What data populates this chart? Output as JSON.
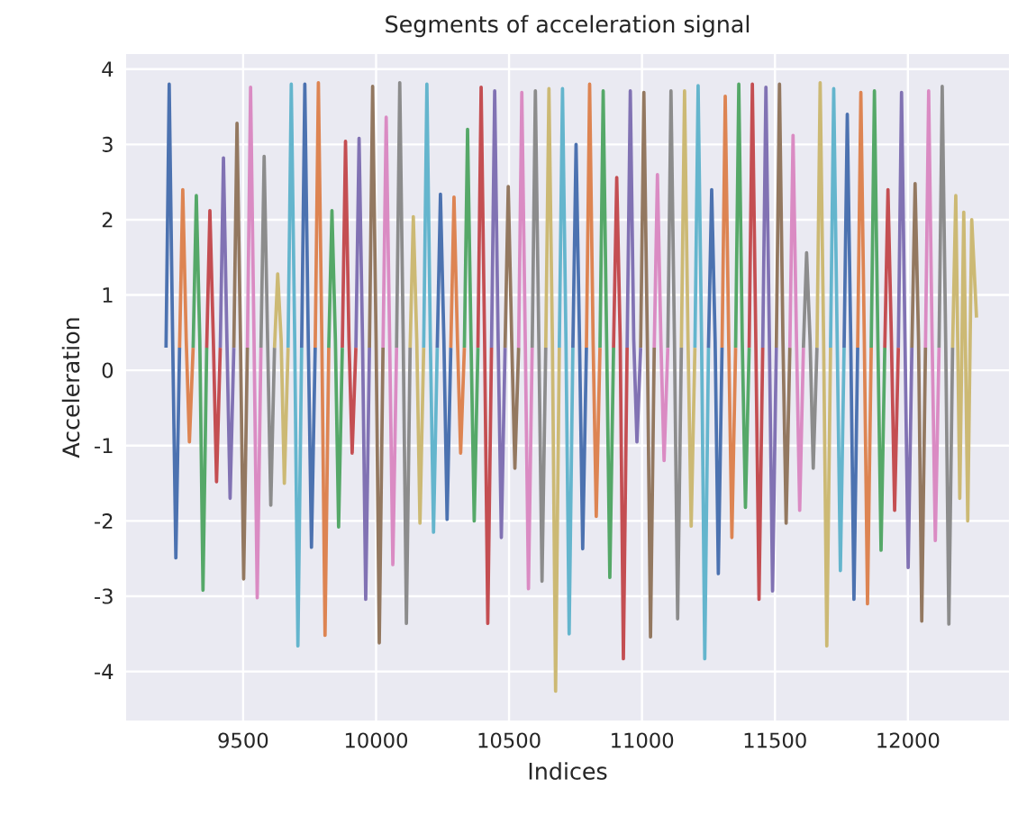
{
  "chart_data": {
    "type": "line",
    "title": "Segments of acceleration signal",
    "xlabel": "Indices",
    "ylabel": "Acceleration",
    "xlim": [
      9060,
      12380
    ],
    "ylim": [
      -4.65,
      4.2
    ],
    "xticks": [
      9500,
      10000,
      10500,
      11000,
      11500,
      12000
    ],
    "yticks": [
      -4,
      -3,
      -2,
      -1,
      0,
      1,
      2,
      3,
      4
    ],
    "grid": true,
    "marker": "none",
    "line_style": "solid",
    "series": [
      {
        "color": "#4c72b0",
        "x": [
          9210,
          9222,
          9235,
          9247,
          9261
        ],
        "values": [
          0.3,
          3.8,
          0.4,
          -2.49,
          0.3
        ]
      },
      {
        "color": "#dd8452",
        "x": [
          9261,
          9273,
          9286,
          9298,
          9312
        ],
        "values": [
          0.3,
          2.4,
          0.4,
          -0.95,
          0.3
        ]
      },
      {
        "color": "#55a868",
        "x": [
          9312,
          9324,
          9337,
          9349,
          9363
        ],
        "values": [
          0.3,
          2.32,
          0.4,
          -2.92,
          0.3
        ]
      },
      {
        "color": "#c44e52",
        "x": [
          9363,
          9375,
          9388,
          9400,
          9414
        ],
        "values": [
          0.3,
          2.12,
          0.4,
          -1.48,
          0.3
        ]
      },
      {
        "color": "#8172b3",
        "x": [
          9414,
          9426,
          9439,
          9451,
          9465
        ],
        "values": [
          0.3,
          2.82,
          0.4,
          -1.7,
          0.3
        ]
      },
      {
        "color": "#937860",
        "x": [
          9465,
          9477,
          9490,
          9502,
          9516
        ],
        "values": [
          0.3,
          3.28,
          0.4,
          -2.77,
          0.3
        ]
      },
      {
        "color": "#da8bc3",
        "x": [
          9516,
          9528,
          9541,
          9553,
          9567
        ],
        "values": [
          0.3,
          3.76,
          0.4,
          -3.02,
          0.3
        ]
      },
      {
        "color": "#8c8c8c",
        "x": [
          9567,
          9579,
          9592,
          9604,
          9618
        ],
        "values": [
          0.3,
          2.84,
          0.4,
          -1.79,
          0.3
        ]
      },
      {
        "color": "#ccb974",
        "x": [
          9618,
          9630,
          9643,
          9655,
          9669
        ],
        "values": [
          0.3,
          1.28,
          0.4,
          -1.5,
          0.3
        ]
      },
      {
        "color": "#64b5cd",
        "x": [
          9669,
          9681,
          9694,
          9706,
          9720
        ],
        "values": [
          0.3,
          3.8,
          0.4,
          -3.66,
          0.3
        ]
      },
      {
        "color": "#4c72b0",
        "x": [
          9720,
          9732,
          9745,
          9757,
          9771
        ],
        "values": [
          0.3,
          3.8,
          0.4,
          -2.35,
          0.3
        ]
      },
      {
        "color": "#dd8452",
        "x": [
          9771,
          9783,
          9796,
          9808,
          9822
        ],
        "values": [
          0.3,
          3.82,
          0.4,
          -3.52,
          0.3
        ]
      },
      {
        "color": "#55a868",
        "x": [
          9822,
          9834,
          9847,
          9859,
          9873
        ],
        "values": [
          0.3,
          2.12,
          0.4,
          -2.08,
          0.3
        ]
      },
      {
        "color": "#c44e52",
        "x": [
          9873,
          9885,
          9898,
          9910,
          9924
        ],
        "values": [
          0.3,
          3.04,
          0.4,
          -1.1,
          0.3
        ]
      },
      {
        "color": "#8172b3",
        "x": [
          9924,
          9936,
          9949,
          9961,
          9975
        ],
        "values": [
          0.3,
          3.08,
          0.4,
          -3.04,
          0.3
        ]
      },
      {
        "color": "#937860",
        "x": [
          9975,
          9987,
          10000,
          10012,
          10026
        ],
        "values": [
          0.3,
          3.77,
          0.4,
          -3.62,
          0.3
        ]
      },
      {
        "color": "#da8bc3",
        "x": [
          10026,
          10038,
          10051,
          10063,
          10077
        ],
        "values": [
          0.3,
          3.36,
          0.4,
          -2.58,
          0.3
        ]
      },
      {
        "color": "#8c8c8c",
        "x": [
          10077,
          10089,
          10102,
          10114,
          10128
        ],
        "values": [
          0.3,
          3.82,
          0.4,
          -3.36,
          0.3
        ]
      },
      {
        "color": "#ccb974",
        "x": [
          10128,
          10140,
          10153,
          10165,
          10179
        ],
        "values": [
          0.3,
          2.04,
          0.4,
          -2.03,
          0.3
        ]
      },
      {
        "color": "#64b5cd",
        "x": [
          10179,
          10191,
          10204,
          10216,
          10230
        ],
        "values": [
          0.3,
          3.8,
          0.4,
          -2.15,
          0.3
        ]
      },
      {
        "color": "#4c72b0",
        "x": [
          10230,
          10242,
          10255,
          10267,
          10281
        ],
        "values": [
          0.3,
          2.34,
          0.4,
          -1.98,
          0.3
        ]
      },
      {
        "color": "#dd8452",
        "x": [
          10281,
          10293,
          10306,
          10318,
          10332
        ],
        "values": [
          0.3,
          2.3,
          0.4,
          -1.1,
          0.3
        ]
      },
      {
        "color": "#55a868",
        "x": [
          10332,
          10344,
          10357,
          10369,
          10383
        ],
        "values": [
          0.3,
          3.2,
          0.4,
          -2.0,
          0.3
        ]
      },
      {
        "color": "#c44e52",
        "x": [
          10383,
          10395,
          10408,
          10420,
          10434
        ],
        "values": [
          0.3,
          3.76,
          0.4,
          -3.36,
          0.3
        ]
      },
      {
        "color": "#8172b3",
        "x": [
          10434,
          10446,
          10459,
          10471,
          10485
        ],
        "values": [
          0.3,
          3.71,
          0.4,
          -2.22,
          0.3
        ]
      },
      {
        "color": "#937860",
        "x": [
          10485,
          10497,
          10510,
          10522,
          10536
        ],
        "values": [
          0.3,
          2.44,
          0.4,
          -1.3,
          0.3
        ]
      },
      {
        "color": "#da8bc3",
        "x": [
          10536,
          10548,
          10561,
          10573,
          10587
        ],
        "values": [
          0.3,
          3.69,
          0.4,
          -2.9,
          0.3
        ]
      },
      {
        "color": "#8c8c8c",
        "x": [
          10587,
          10599,
          10612,
          10624,
          10638
        ],
        "values": [
          0.3,
          3.71,
          0.4,
          -2.8,
          0.3
        ]
      },
      {
        "color": "#ccb974",
        "x": [
          10638,
          10650,
          10663,
          10675,
          10689
        ],
        "values": [
          0.3,
          3.74,
          0.4,
          -4.26,
          0.3
        ]
      },
      {
        "color": "#64b5cd",
        "x": [
          10689,
          10701,
          10714,
          10726,
          10740
        ],
        "values": [
          0.3,
          3.74,
          0.4,
          -3.5,
          0.3
        ]
      },
      {
        "color": "#4c72b0",
        "x": [
          10740,
          10752,
          10765,
          10777,
          10791
        ],
        "values": [
          0.3,
          3.0,
          0.4,
          -2.37,
          0.3
        ]
      },
      {
        "color": "#dd8452",
        "x": [
          10791,
          10803,
          10816,
          10828,
          10842
        ],
        "values": [
          0.3,
          3.8,
          0.4,
          -1.94,
          0.3
        ]
      },
      {
        "color": "#55a868",
        "x": [
          10842,
          10854,
          10867,
          10879,
          10893
        ],
        "values": [
          0.3,
          3.71,
          0.4,
          -2.75,
          0.3
        ]
      },
      {
        "color": "#c44e52",
        "x": [
          10893,
          10905,
          10918,
          10930,
          10944
        ],
        "values": [
          0.3,
          2.56,
          0.4,
          -3.83,
          0.3
        ]
      },
      {
        "color": "#8172b3",
        "x": [
          10944,
          10956,
          10969,
          10981,
          10995
        ],
        "values": [
          0.3,
          3.71,
          0.4,
          -0.95,
          0.3
        ]
      },
      {
        "color": "#937860",
        "x": [
          10995,
          11007,
          11020,
          11032,
          11046
        ],
        "values": [
          0.3,
          3.69,
          0.4,
          -3.54,
          0.3
        ]
      },
      {
        "color": "#da8bc3",
        "x": [
          11046,
          11058,
          11071,
          11083,
          11097
        ],
        "values": [
          0.3,
          2.6,
          0.4,
          -1.2,
          0.3
        ]
      },
      {
        "color": "#8c8c8c",
        "x": [
          11097,
          11109,
          11122,
          11134,
          11148
        ],
        "values": [
          0.3,
          3.71,
          0.4,
          -3.3,
          0.3
        ]
      },
      {
        "color": "#ccb974",
        "x": [
          11148,
          11160,
          11173,
          11185,
          11199
        ],
        "values": [
          0.3,
          3.71,
          0.4,
          -2.07,
          0.3
        ]
      },
      {
        "color": "#64b5cd",
        "x": [
          11199,
          11211,
          11224,
          11236,
          11250
        ],
        "values": [
          0.3,
          3.78,
          0.4,
          -3.83,
          0.3
        ]
      },
      {
        "color": "#4c72b0",
        "x": [
          11250,
          11262,
          11275,
          11287,
          11301
        ],
        "values": [
          0.3,
          2.4,
          0.4,
          -2.7,
          0.3
        ]
      },
      {
        "color": "#dd8452",
        "x": [
          11301,
          11313,
          11326,
          11338,
          11352
        ],
        "values": [
          0.3,
          3.64,
          0.4,
          -2.22,
          0.3
        ]
      },
      {
        "color": "#55a868",
        "x": [
          11352,
          11364,
          11377,
          11389,
          11403
        ],
        "values": [
          0.3,
          3.8,
          0.4,
          -1.82,
          0.3
        ]
      },
      {
        "color": "#c44e52",
        "x": [
          11403,
          11415,
          11428,
          11440,
          11454
        ],
        "values": [
          0.3,
          3.8,
          0.4,
          -3.04,
          0.3
        ]
      },
      {
        "color": "#8172b3",
        "x": [
          11454,
          11466,
          11479,
          11491,
          11505
        ],
        "values": [
          0.3,
          3.76,
          0.4,
          -2.93,
          0.3
        ]
      },
      {
        "color": "#937860",
        "x": [
          11505,
          11517,
          11530,
          11542,
          11556
        ],
        "values": [
          0.3,
          3.8,
          0.4,
          -2.03,
          0.3
        ]
      },
      {
        "color": "#da8bc3",
        "x": [
          11556,
          11568,
          11581,
          11593,
          11607
        ],
        "values": [
          0.3,
          3.12,
          0.4,
          -1.86,
          0.3
        ]
      },
      {
        "color": "#8c8c8c",
        "x": [
          11607,
          11619,
          11632,
          11644,
          11658
        ],
        "values": [
          0.3,
          1.56,
          0.4,
          -1.3,
          0.3
        ]
      },
      {
        "color": "#ccb974",
        "x": [
          11658,
          11670,
          11683,
          11695,
          11709
        ],
        "values": [
          0.3,
          3.82,
          0.4,
          -3.66,
          0.3
        ]
      },
      {
        "color": "#64b5cd",
        "x": [
          11709,
          11721,
          11734,
          11746,
          11760
        ],
        "values": [
          0.3,
          3.74,
          0.4,
          -2.66,
          0.3
        ]
      },
      {
        "color": "#4c72b0",
        "x": [
          11760,
          11772,
          11785,
          11797,
          11811
        ],
        "values": [
          0.3,
          3.4,
          0.4,
          -3.04,
          0.3
        ]
      },
      {
        "color": "#dd8452",
        "x": [
          11811,
          11823,
          11836,
          11848,
          11862
        ],
        "values": [
          0.3,
          3.69,
          0.4,
          -3.1,
          0.3
        ]
      },
      {
        "color": "#55a868",
        "x": [
          11862,
          11874,
          11887,
          11899,
          11913
        ],
        "values": [
          0.3,
          3.71,
          0.4,
          -2.39,
          0.3
        ]
      },
      {
        "color": "#c44e52",
        "x": [
          11913,
          11925,
          11938,
          11950,
          11964
        ],
        "values": [
          0.3,
          2.4,
          0.4,
          -1.86,
          0.3
        ]
      },
      {
        "color": "#8172b3",
        "x": [
          11964,
          11976,
          11989,
          12001,
          12015
        ],
        "values": [
          0.3,
          3.69,
          0.4,
          -2.62,
          0.3
        ]
      },
      {
        "color": "#937860",
        "x": [
          12015,
          12027,
          12040,
          12052,
          12066
        ],
        "values": [
          0.3,
          2.48,
          0.4,
          -3.33,
          0.3
        ]
      },
      {
        "color": "#da8bc3",
        "x": [
          12066,
          12078,
          12091,
          12103,
          12117
        ],
        "values": [
          0.3,
          3.71,
          0.4,
          -2.26,
          0.3
        ]
      },
      {
        "color": "#8c8c8c",
        "x": [
          12117,
          12129,
          12142,
          12154,
          12168
        ],
        "values": [
          0.3,
          3.77,
          0.4,
          -3.37,
          0.3
        ]
      },
      {
        "color": "#ccb974",
        "x": [
          12168,
          12180,
          12195,
          12210,
          12225,
          12240,
          12258
        ],
        "values": [
          0.3,
          2.32,
          -1.7,
          2.1,
          -2.0,
          2.0,
          0.7
        ]
      }
    ]
  }
}
